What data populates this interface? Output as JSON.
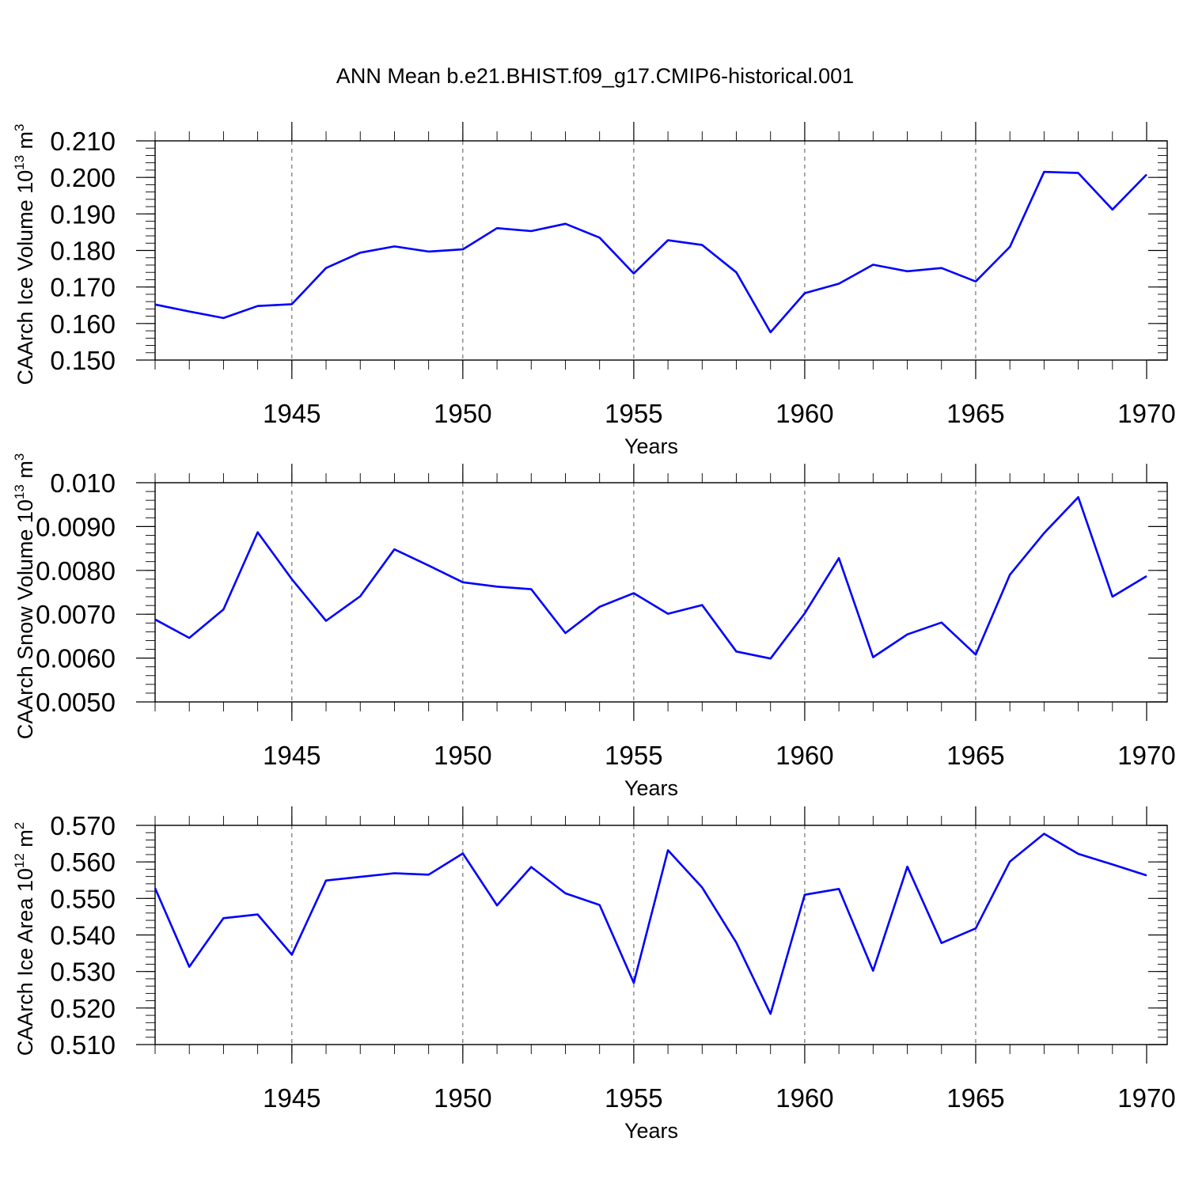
{
  "title": "ANN Mean b.e21.BHIST.f09_g17.CMIP6-historical.001",
  "colors": {
    "series": "#0000ff",
    "axis": "#000000"
  },
  "chart_data": [
    {
      "type": "line",
      "ylabel": "CAArch Ice Volume 10",
      "ylabel_exp": "13",
      "ylabel_unit": " m",
      "ylabel_unit_exp": "3",
      "xlabel": "Years",
      "xlim": [
        1941,
        1970
      ],
      "ylim": [
        0.15,
        0.21
      ],
      "yticks": [
        0.15,
        0.16,
        0.17,
        0.18,
        0.19,
        0.2,
        0.21
      ],
      "ytick_labels": [
        "0.150",
        "0.160",
        "0.170",
        "0.180",
        "0.190",
        "0.200",
        "0.210"
      ],
      "xticks": [
        1945,
        1950,
        1955,
        1960,
        1965,
        1970
      ],
      "xtick_labels": [
        "1945",
        "1950",
        "1955",
        "1960",
        "1965",
        "1970"
      ],
      "grid": "dashed vertical at major x ticks",
      "x": [
        1941,
        1942,
        1943,
        1944,
        1945,
        1946,
        1947,
        1948,
        1949,
        1950,
        1951,
        1952,
        1953,
        1954,
        1955,
        1956,
        1957,
        1958,
        1959,
        1960,
        1961,
        1962,
        1963,
        1964,
        1965,
        1966,
        1967,
        1968,
        1969,
        1970
      ],
      "values": [
        0.1652,
        0.1633,
        0.1615,
        0.1648,
        0.1653,
        0.1752,
        0.1794,
        0.1811,
        0.1797,
        0.1803,
        0.1861,
        0.1853,
        0.1873,
        0.1835,
        0.1737,
        0.1828,
        0.1815,
        0.174,
        0.1576,
        0.1683,
        0.1709,
        0.1761,
        0.1743,
        0.1752,
        0.1715,
        0.181,
        0.2015,
        0.2012,
        0.1912,
        0.2008
      ]
    },
    {
      "type": "line",
      "ylabel": "CAArch Snow Volume 10",
      "ylabel_exp": "13",
      "ylabel_unit": " m",
      "ylabel_unit_exp": "3",
      "xlabel": "Years",
      "xlim": [
        1941,
        1970
      ],
      "ylim": [
        0.005,
        0.01
      ],
      "yticks": [
        0.005,
        0.006,
        0.007,
        0.008,
        0.009,
        0.01
      ],
      "ytick_labels": [
        "0.0050",
        "0.0060",
        "0.0070",
        "0.0080",
        "0.0090",
        "0.010"
      ],
      "xticks": [
        1945,
        1950,
        1955,
        1960,
        1965,
        1970
      ],
      "xtick_labels": [
        "1945",
        "1950",
        "1955",
        "1960",
        "1965",
        "1970"
      ],
      "grid": "dashed vertical at major x ticks",
      "x": [
        1941,
        1942,
        1943,
        1944,
        1945,
        1946,
        1947,
        1948,
        1949,
        1950,
        1951,
        1952,
        1953,
        1954,
        1955,
        1956,
        1957,
        1958,
        1959,
        1960,
        1961,
        1962,
        1963,
        1964,
        1965,
        1966,
        1967,
        1968,
        1969,
        1970
      ],
      "values": [
        0.00688,
        0.00646,
        0.00711,
        0.00887,
        0.0078,
        0.00685,
        0.00741,
        0.00848,
        0.00811,
        0.00773,
        0.00763,
        0.00757,
        0.00657,
        0.00717,
        0.00748,
        0.00701,
        0.00721,
        0.00615,
        0.00599,
        0.00702,
        0.00828,
        0.00602,
        0.00654,
        0.00681,
        0.00608,
        0.0079,
        0.00885,
        0.00967,
        0.0074,
        0.00787
      ]
    },
    {
      "type": "line",
      "ylabel": "CAArch Ice Area 10",
      "ylabel_exp": "12",
      "ylabel_unit": " m",
      "ylabel_unit_exp": "2",
      "xlabel": "Years",
      "xlim": [
        1941,
        1970
      ],
      "ylim": [
        0.51,
        0.57
      ],
      "yticks": [
        0.51,
        0.52,
        0.53,
        0.54,
        0.55,
        0.56,
        0.57
      ],
      "ytick_labels": [
        "0.510",
        "0.520",
        "0.530",
        "0.540",
        "0.550",
        "0.560",
        "0.570"
      ],
      "xticks": [
        1945,
        1950,
        1955,
        1960,
        1965,
        1970
      ],
      "xtick_labels": [
        "1945",
        "1950",
        "1955",
        "1960",
        "1965",
        "1970"
      ],
      "grid": "dashed vertical at major x ticks",
      "x": [
        1941,
        1942,
        1943,
        1944,
        1945,
        1946,
        1947,
        1948,
        1949,
        1950,
        1951,
        1952,
        1953,
        1954,
        1955,
        1956,
        1957,
        1958,
        1959,
        1960,
        1961,
        1962,
        1963,
        1964,
        1965,
        1966,
        1967,
        1968,
        1969,
        1970
      ],
      "values": [
        0.5528,
        0.5313,
        0.5446,
        0.5456,
        0.5346,
        0.5549,
        0.5559,
        0.5569,
        0.5565,
        0.5623,
        0.5481,
        0.5586,
        0.5514,
        0.5482,
        0.5269,
        0.5632,
        0.553,
        0.5379,
        0.5184,
        0.551,
        0.5526,
        0.5302,
        0.5587,
        0.5378,
        0.5418,
        0.5601,
        0.5677,
        0.5622,
        0.5593,
        0.5563
      ]
    }
  ]
}
